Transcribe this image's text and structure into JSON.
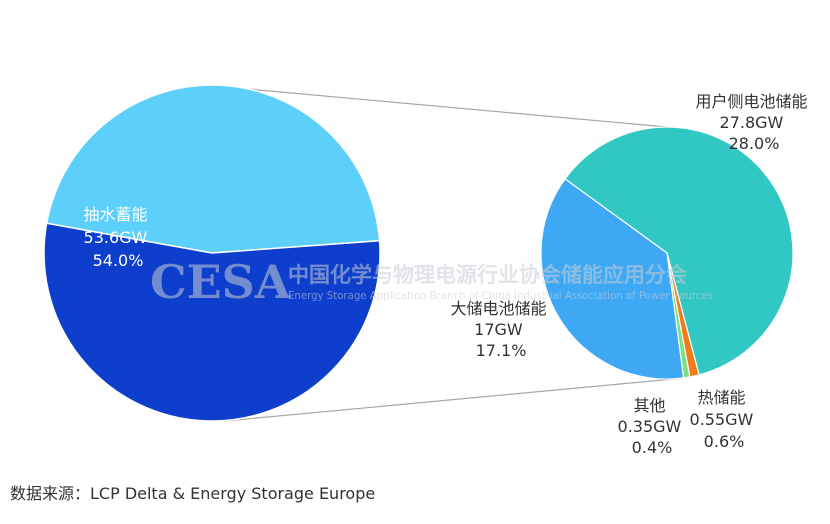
{
  "chart_data": {
    "type": "pie",
    "main_pie": {
      "slices": [
        {
          "name": "抽水蓄能",
          "value": "53.6GW",
          "percent": "54.0%",
          "share": 54.0,
          "color": "#0d3fcc"
        },
        {
          "name": "",
          "value": "",
          "percent": "",
          "share": 46.0,
          "color": "#5ccffb"
        }
      ]
    },
    "detail_pie": {
      "slices": [
        {
          "name": "用户侧电池储能",
          "value": "27.8GW",
          "percent": "28.0%",
          "share": 60.9,
          "color": "#31c7c3"
        },
        {
          "name": "热储能",
          "value": "0.55GW",
          "percent": "0.6%",
          "share": 1.2,
          "color": "#ee7d1b"
        },
        {
          "name": "其他",
          "value": "0.35GW",
          "percent": "0.4%",
          "share": 0.8,
          "color": "#7fe07f"
        },
        {
          "name": "大储电池储能",
          "value": "17GW",
          "percent": "17.1%",
          "share": 37.1,
          "color": "#3ea8f5"
        }
      ]
    }
  },
  "watermark": {
    "logo": "CESA",
    "name_cn": "中国化学与物理电源行业协会储能应用分会",
    "name_en": "Energy Storage Application Branch of China Industrial Association of Power Sources"
  },
  "source_note": "数据来源：LCP Delta & Energy Storage Europe",
  "colors": {
    "label_dark": "#333333",
    "label_light": "#ffffff",
    "connector": "#a6a6a6",
    "watermark": "#c9cdd6"
  }
}
